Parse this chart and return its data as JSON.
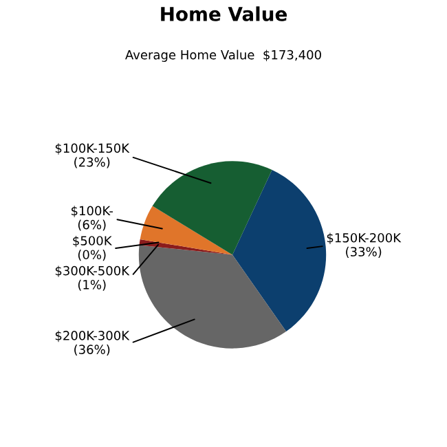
{
  "chart_data": {
    "type": "pie",
    "title": "Home Value",
    "subtitle": "Average Home Value  $173,400",
    "categories": [
      "$150K-200K",
      "$200K-300K",
      "$300K-500K",
      "$500K",
      "$100K-",
      "$100K-150K"
    ],
    "values": [
      33,
      36,
      1,
      0,
      6,
      23
    ],
    "value_labels": [
      "(33%)",
      "(36%)",
      "(1%)",
      "(0%)",
      "(6%)",
      "(23%)"
    ],
    "colors": [
      "#0c3f6e",
      "#666666",
      "#8b1c1c",
      "#5a2a2a",
      "#e0752a",
      "#165e32"
    ]
  }
}
